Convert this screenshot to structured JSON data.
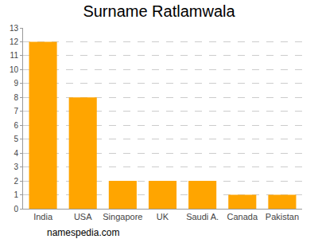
{
  "chart_data": {
    "type": "bar",
    "title": "Surname Ratlamwala",
    "categories": [
      "India",
      "USA",
      "Singapore",
      "UK",
      "Saudi A.",
      "Canada",
      "Pakistan"
    ],
    "values": [
      12,
      8,
      2,
      2,
      2,
      1,
      1
    ],
    "color": "#ffa500",
    "ylim": [
      0,
      13
    ],
    "yticks": [
      0,
      1,
      2,
      3,
      4,
      5,
      6,
      7,
      8,
      9,
      10,
      11,
      12,
      13
    ],
    "grid": true,
    "annotations": [
      {
        "text": "namespedia.com"
      }
    ]
  }
}
